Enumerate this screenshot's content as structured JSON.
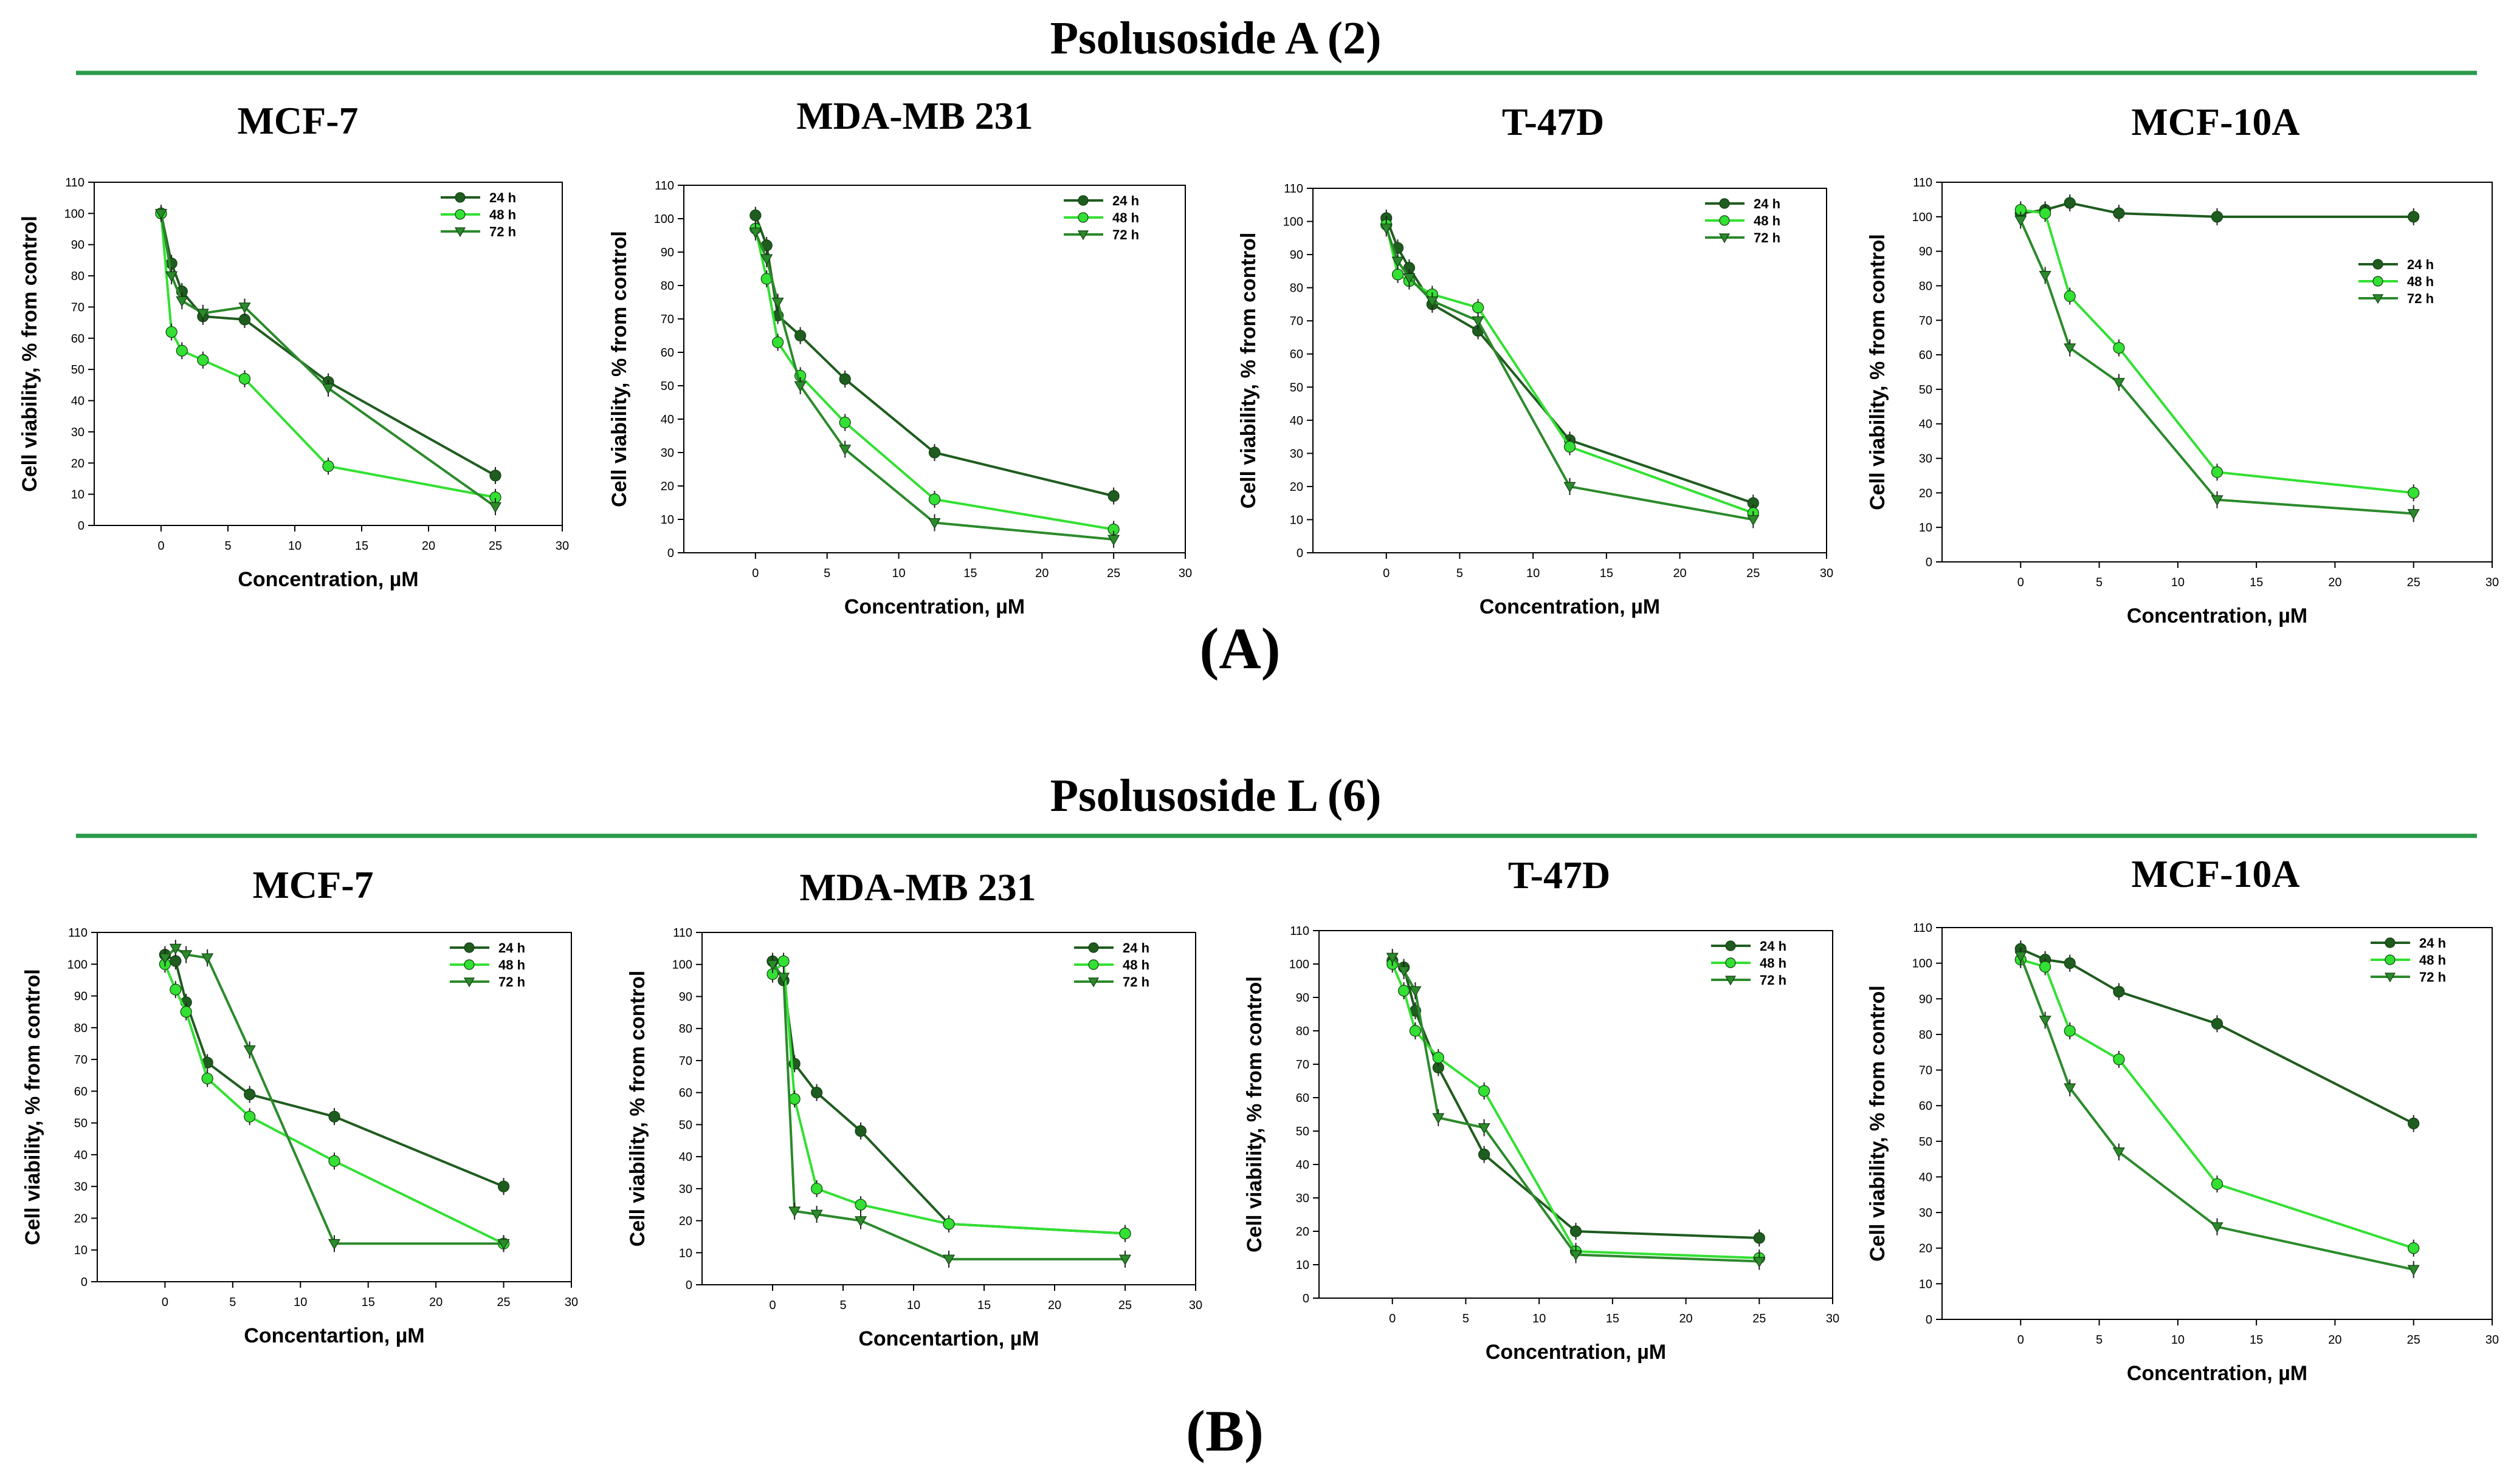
{
  "figure": {
    "panel_a": {
      "compound_title": "Psolusoside A (2)",
      "panel_label": "(A)"
    },
    "panel_b": {
      "compound_title": "Psolusoside L (6)",
      "panel_label": "(B)"
    }
  },
  "colors": {
    "h24": "#1f5c1f",
    "h48": "#33e033",
    "h72": "#2b8a2b",
    "rule": "#2a9a4a"
  },
  "chart_data": [
    {
      "type": "line",
      "panel": "A",
      "title": "MCF-7",
      "xlabel": "Concentration, µM",
      "ylabel": "Cell viability, % from control",
      "xlim": [
        -5,
        30
      ],
      "ylim": [
        0,
        110
      ],
      "xticks": [
        "0",
        "5",
        "10",
        "15",
        "20",
        "25",
        "30"
      ],
      "yticks": [
        "0",
        "10",
        "20",
        "30",
        "40",
        "50",
        "60",
        "70",
        "80",
        "90",
        "100",
        "110"
      ],
      "legend": "top-right",
      "x": [
        0,
        0.78,
        1.56,
        3.13,
        6.25,
        12.5,
        25
      ],
      "series": [
        {
          "name": "24 h",
          "values": [
            100,
            84,
            75,
            67,
            66,
            46,
            16
          ]
        },
        {
          "name": "48 h",
          "values": [
            100,
            62,
            56,
            53,
            47,
            19,
            9
          ]
        },
        {
          "name": "72 h",
          "values": [
            100,
            80,
            72,
            68,
            70,
            44,
            6
          ]
        }
      ]
    },
    {
      "type": "line",
      "panel": "A",
      "title": "MDA-MB 231",
      "xlabel": "Concentration, µM",
      "ylabel": "Cell viability, % from control",
      "xlim": [
        -5,
        30
      ],
      "ylim": [
        0,
        110
      ],
      "xticks": [
        "0",
        "5",
        "10",
        "15",
        "20",
        "25",
        "30"
      ],
      "yticks": [
        "0",
        "10",
        "20",
        "30",
        "40",
        "50",
        "60",
        "70",
        "80",
        "90",
        "100",
        "110"
      ],
      "legend": "top-right",
      "x": [
        0,
        0.78,
        1.56,
        3.13,
        6.25,
        12.5,
        25
      ],
      "series": [
        {
          "name": "24 h",
          "values": [
            101,
            92,
            71,
            65,
            52,
            30,
            17
          ]
        },
        {
          "name": "48 h",
          "values": [
            97,
            82,
            63,
            53,
            39,
            16,
            7
          ]
        },
        {
          "name": "72 h",
          "values": [
            96,
            88,
            75,
            50,
            31,
            9,
            4
          ]
        }
      ]
    },
    {
      "type": "line",
      "panel": "A",
      "title": "T-47D",
      "xlabel": "Concentration, µM",
      "ylabel": "Cell viability, % from control",
      "xlim": [
        -5,
        30
      ],
      "ylim": [
        0,
        110
      ],
      "xticks": [
        "0",
        "5",
        "10",
        "15",
        "20",
        "25",
        "30"
      ],
      "yticks": [
        "0",
        "10",
        "20",
        "30",
        "40",
        "50",
        "60",
        "70",
        "80",
        "90",
        "100",
        "110"
      ],
      "legend": "top-right",
      "x": [
        0,
        0.78,
        1.56,
        3.13,
        6.25,
        12.5,
        25
      ],
      "series": [
        {
          "name": "24 h",
          "values": [
            101,
            92,
            86,
            75,
            67,
            34,
            15
          ]
        },
        {
          "name": "48 h",
          "values": [
            99,
            84,
            82,
            78,
            74,
            32,
            12
          ]
        },
        {
          "name": "72 h",
          "values": [
            98,
            88,
            83,
            76,
            70,
            20,
            10
          ]
        }
      ]
    },
    {
      "type": "line",
      "panel": "A",
      "title": "MCF-10A",
      "xlabel": "Concentration, µM",
      "ylabel": "Cell viability, % from control",
      "xlim": [
        -5,
        30
      ],
      "ylim": [
        0,
        110
      ],
      "xticks": [
        "0",
        "5",
        "10",
        "15",
        "20",
        "25",
        "30"
      ],
      "yticks": [
        "0",
        "10",
        "20",
        "30",
        "40",
        "50",
        "60",
        "70",
        "80",
        "90",
        "100",
        "110"
      ],
      "legend": "right",
      "x": [
        0,
        1.56,
        3.13,
        6.25,
        12.5,
        25
      ],
      "series": [
        {
          "name": "24 h",
          "values": [
            101,
            102,
            104,
            101,
            100,
            100
          ]
        },
        {
          "name": "48 h",
          "values": [
            102,
            101,
            77,
            62,
            26,
            20
          ]
        },
        {
          "name": "72 h",
          "values": [
            99,
            83,
            62,
            52,
            18,
            14
          ]
        }
      ]
    },
    {
      "type": "line",
      "panel": "B",
      "title": "MCF-7",
      "xlabel": "Concentartion, µM",
      "ylabel": "Cell viability, % from control",
      "xlim": [
        -5,
        30
      ],
      "ylim": [
        0,
        110
      ],
      "xticks": [
        "0",
        "5",
        "10",
        "15",
        "20",
        "25",
        "30"
      ],
      "yticks": [
        "0",
        "10",
        "20",
        "30",
        "40",
        "50",
        "60",
        "70",
        "80",
        "90",
        "100",
        "110"
      ],
      "legend": "top-right",
      "x": [
        0,
        0.78,
        1.56,
        3.13,
        6.25,
        12.5,
        25
      ],
      "series": [
        {
          "name": "24 h",
          "values": [
            103,
            101,
            88,
            69,
            59,
            52,
            30
          ]
        },
        {
          "name": "48 h",
          "values": [
            100,
            92,
            85,
            64,
            52,
            38,
            12
          ]
        },
        {
          "name": "72 h",
          "values": [
            102,
            105,
            103,
            102,
            73,
            12,
            12
          ]
        }
      ]
    },
    {
      "type": "line",
      "panel": "B",
      "title": "MDA-MB 231",
      "xlabel": "Concentartion, µM",
      "ylabel": "Cell viability, % from control",
      "xlim": [
        -5,
        30
      ],
      "ylim": [
        0,
        110
      ],
      "xticks": [
        "0",
        "5",
        "10",
        "15",
        "20",
        "25",
        "30"
      ],
      "yticks": [
        "0",
        "10",
        "20",
        "30",
        "40",
        "50",
        "60",
        "70",
        "80",
        "90",
        "100",
        "110"
      ],
      "legend": "top-right",
      "x": [
        0,
        0.78,
        1.56,
        3.13,
        6.25,
        12.5,
        25
      ],
      "series": [
        {
          "name": "24 h",
          "values": [
            101,
            95,
            69,
            60,
            48,
            19,
            16
          ]
        },
        {
          "name": "48 h",
          "values": [
            97,
            101,
            58,
            30,
            25,
            19,
            16
          ]
        },
        {
          "name": "72 h",
          "values": [
            100,
            96,
            23,
            22,
            20,
            8,
            8
          ]
        }
      ]
    },
    {
      "type": "line",
      "panel": "B",
      "title": "T-47D",
      "xlabel": "Concentration, µM",
      "ylabel": "Cell viability, % from control",
      "xlim": [
        -5,
        30
      ],
      "ylim": [
        0,
        110
      ],
      "xticks": [
        "0",
        "5",
        "10",
        "15",
        "20",
        "25",
        "30"
      ],
      "yticks": [
        "0",
        "10",
        "20",
        "30",
        "40",
        "50",
        "60",
        "70",
        "80",
        "90",
        "100",
        "110"
      ],
      "legend": "top-right",
      "x": [
        0,
        0.78,
        1.56,
        3.13,
        6.25,
        12.5,
        25
      ],
      "series": [
        {
          "name": "24 h",
          "values": [
            101,
            99,
            86,
            69,
            43,
            20,
            18
          ]
        },
        {
          "name": "48 h",
          "values": [
            100,
            92,
            80,
            72,
            62,
            14,
            12
          ]
        },
        {
          "name": "72 h",
          "values": [
            102,
            98,
            92,
            54,
            51,
            13,
            11
          ]
        }
      ]
    },
    {
      "type": "line",
      "panel": "B",
      "title": "MCF-10A",
      "xlabel": "Concentration, µM",
      "ylabel": "Cell viability, % from control",
      "xlim": [
        -5,
        30
      ],
      "ylim": [
        0,
        110
      ],
      "xticks": [
        "0",
        "5",
        "10",
        "15",
        "20",
        "25",
        "30"
      ],
      "yticks": [
        "0",
        "10",
        "20",
        "30",
        "40",
        "50",
        "60",
        "70",
        "80",
        "90",
        "100",
        "110"
      ],
      "legend": "top-right",
      "x": [
        0,
        1.56,
        3.13,
        6.25,
        12.5,
        25
      ],
      "series": [
        {
          "name": "24 h",
          "values": [
            104,
            101,
            100,
            92,
            83,
            55
          ]
        },
        {
          "name": "48 h",
          "values": [
            101,
            99,
            81,
            73,
            38,
            20
          ]
        },
        {
          "name": "72 h",
          "values": [
            102,
            84,
            65,
            47,
            26,
            14
          ]
        }
      ]
    }
  ]
}
